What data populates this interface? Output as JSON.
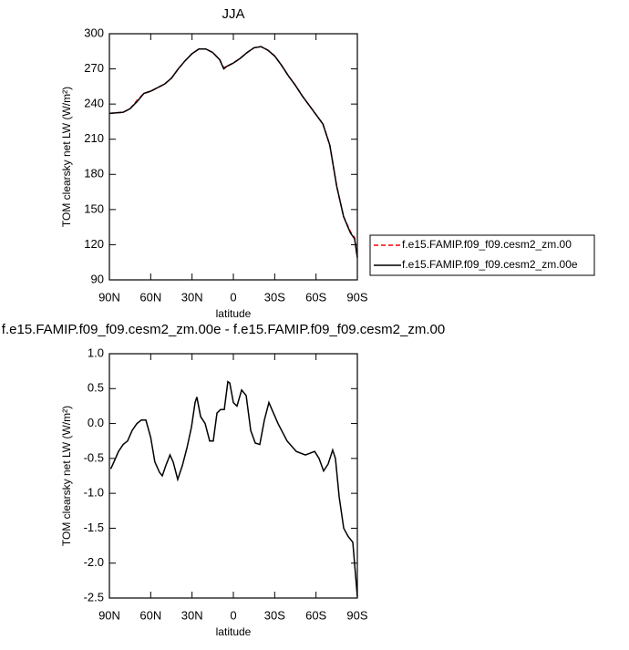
{
  "chart_data": [
    {
      "type": "line",
      "title": "JJA",
      "x_label": "latitude",
      "y_label": "TOM clearsky net LW (W/m²)",
      "x": [
        90,
        85,
        80,
        75,
        70,
        65,
        60,
        55,
        50,
        45,
        40,
        35,
        30,
        25,
        20,
        15,
        10,
        7,
        5,
        0,
        -5,
        -10,
        -15,
        -20,
        -25,
        -30,
        -35,
        -40,
        -45,
        -50,
        -55,
        -60,
        -65,
        -70,
        -75,
        -80,
        -85,
        -88,
        -90
      ],
      "series": [
        {
          "name": "f.e15.FAMIP.f09_f09.cesm2_zm.00",
          "color": "#ff0000",
          "line_style": "dashed",
          "values": [
            232,
            232.5,
            233,
            236,
            243,
            249,
            251,
            254,
            257,
            262,
            270,
            277,
            283,
            287,
            287,
            284,
            278,
            271,
            272,
            275,
            279,
            284,
            288,
            289,
            286,
            281,
            273,
            264,
            256,
            247,
            239,
            231,
            223,
            205,
            170,
            144,
            131,
            126,
            109
          ]
        },
        {
          "name": "f.e15.FAMIP.f09_f09.cesm2_zm.00e",
          "color": "#000000",
          "line_style": "solid",
          "values": [
            232,
            232.5,
            233,
            236,
            242,
            249,
            251,
            254,
            257,
            262,
            270,
            277,
            283,
            287,
            287,
            284,
            278,
            270,
            272,
            275,
            279,
            284,
            288,
            289,
            286,
            281,
            273,
            264,
            256,
            247,
            239,
            231,
            223,
            205,
            170,
            144,
            130,
            125,
            109
          ]
        }
      ],
      "xlim": [
        90,
        -90
      ],
      "xticks": [
        {
          "value": 90,
          "label": "90N"
        },
        {
          "value": 60,
          "label": "60N"
        },
        {
          "value": 30,
          "label": "30N"
        },
        0,
        {
          "value": -30,
          "label": "30S"
        },
        {
          "value": -60,
          "label": "60S"
        },
        {
          "value": -90,
          "label": "90S"
        }
      ],
      "ylim": [
        90,
        300
      ],
      "yticks": [
        90,
        120,
        150,
        180,
        210,
        240,
        270,
        300
      ],
      "legend": "right"
    },
    {
      "type": "line",
      "title": "f.e15.FAMIP.f09_f09.cesm2_zm.00e - f.e15.FAMIP.f09_f09.cesm2_zm.00",
      "x_label": "latitude",
      "y_label": "TOM clearsky net LW (W/m²)",
      "x": [
        89,
        86.7,
        83.4,
        80,
        76.8,
        73.5,
        70,
        66.8,
        63.5,
        60,
        57,
        53.6,
        51.6,
        49,
        46,
        43.7,
        40.4,
        37,
        33.7,
        30.4,
        27.8,
        26.5,
        23.8,
        20.5,
        17.2,
        14.6,
        11.9,
        9.3,
        6.6,
        4,
        2.6,
        0,
        -2.6,
        -6,
        -9.3,
        -12.6,
        -15.9,
        -19.2,
        -22.5,
        -25.8,
        -29.1,
        -32.4,
        -39,
        -45.7,
        -52.3,
        -59,
        -62.2,
        -65.5,
        -68.8,
        -72.1,
        -74.1,
        -76.8,
        -80.1,
        -83.4,
        -86.7,
        -90
      ],
      "series": [
        {
          "name": null,
          "color": "#000000",
          "line_style": "solid",
          "values": [
            -0.65,
            -0.55,
            -0.4,
            -0.3,
            -0.25,
            -0.1,
            0.0,
            0.05,
            0.05,
            -0.2,
            -0.55,
            -0.7,
            -0.75,
            -0.6,
            -0.45,
            -0.55,
            -0.8,
            -0.6,
            -0.35,
            -0.05,
            0.3,
            0.38,
            0.1,
            0.0,
            -0.25,
            -0.25,
            0.15,
            0.2,
            0.2,
            0.6,
            0.58,
            0.3,
            0.25,
            0.48,
            0.4,
            -0.1,
            -0.28,
            -0.3,
            0.05,
            0.3,
            0.15,
            0.0,
            -0.25,
            -0.4,
            -0.45,
            -0.4,
            -0.5,
            -0.68,
            -0.58,
            -0.38,
            -0.5,
            -1.05,
            -1.5,
            -1.62,
            -1.7,
            -2.48
          ]
        }
      ],
      "xlim": [
        90,
        -90
      ],
      "xticks": [
        {
          "value": 90,
          "label": "90N"
        },
        {
          "value": 60,
          "label": "60N"
        },
        {
          "value": 30,
          "label": "30N"
        },
        0,
        {
          "value": -30,
          "label": "30S"
        },
        {
          "value": -60,
          "label": "60S"
        },
        {
          "value": -90,
          "label": "90S"
        }
      ],
      "ylim": [
        -2.5,
        1.0
      ],
      "yticks": [
        -2.5,
        {
          "value": -2,
          "label": "-2.0"
        },
        -1.5,
        {
          "value": -1,
          "label": "-1.0"
        },
        -0.5,
        {
          "value": 0,
          "label": "0.0"
        },
        0.5,
        {
          "value": 1,
          "label": "1.0"
        }
      ]
    }
  ]
}
